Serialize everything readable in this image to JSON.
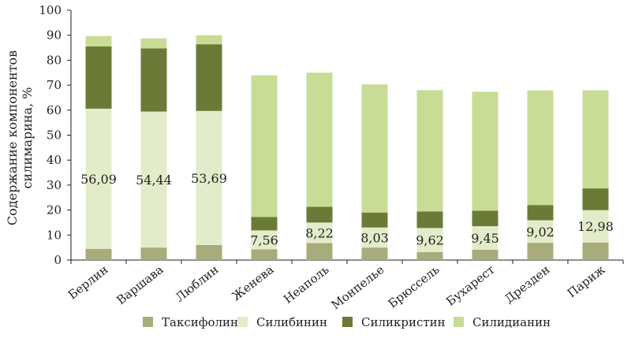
{
  "chart_data": {
    "type": "bar",
    "stacked": true,
    "ylabel_lines": [
      "Содержание компонентов",
      "силимарина, %"
    ],
    "ylim": [
      0,
      100
    ],
    "yticks": [
      0,
      10,
      20,
      30,
      40,
      50,
      60,
      70,
      80,
      90,
      100
    ],
    "categories": [
      "Берлин",
      "Варшава",
      "Люблин",
      "Женева",
      "Неаполь",
      "Монпелье",
      "Брюссель",
      "Бухарест",
      "Дрезден",
      "Париж"
    ],
    "series": [
      {
        "name": "Таксифолин",
        "color": "#a8ab7a",
        "values": [
          4.5,
          5.0,
          6.0,
          4.3,
          6.8,
          5.0,
          3.2,
          4.1,
          6.9,
          7.0
        ]
      },
      {
        "name": "Силибинин",
        "color": "#e3ecca",
        "values": [
          56.09,
          54.44,
          53.69,
          7.56,
          8.22,
          8.03,
          9.62,
          9.45,
          9.02,
          12.98
        ]
      },
      {
        "name": "Силикристин",
        "color": "#6b7a36",
        "values": [
          24.9,
          25.3,
          26.7,
          5.4,
          6.3,
          6.0,
          6.6,
          6.2,
          6.1,
          8.7
        ]
      },
      {
        "name": "Силидианин",
        "color": "#c8dc96",
        "values": [
          4.2,
          4.0,
          3.6,
          56.7,
          53.7,
          51.3,
          48.6,
          47.6,
          45.9,
          39.3
        ]
      }
    ],
    "data_labels": [
      "56,09",
      "54,44",
      "53,69",
      "7,56",
      "8,22",
      "8,03",
      "9,62",
      "9,45",
      "9,02",
      "12,98"
    ],
    "legend_position": "bottom",
    "grid": false
  }
}
